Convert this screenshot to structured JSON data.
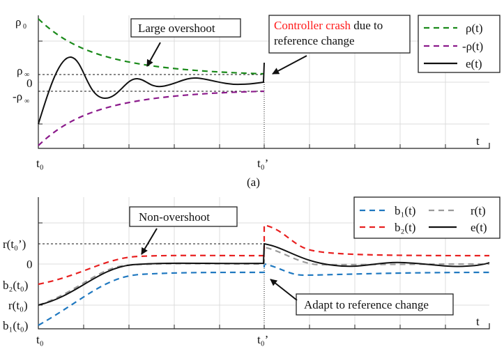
{
  "panel_a": {
    "caption": "(a)",
    "y_labels": {
      "rho0": "ρ",
      "rho0_sub": "0",
      "rho_inf": "ρ",
      "rho_inf_sub": "∞",
      "zero": "0",
      "neg_rho_inf": "-ρ",
      "neg_rho_inf_sub": "∞"
    },
    "x_labels": {
      "t0": "t₀",
      "t0p": "t₀’",
      "t": "t"
    },
    "annotations": {
      "overshoot": "Large overshoot",
      "crash_red": "Controller crash",
      "crash_rest1": " due to",
      "crash_rest2": "reference change"
    },
    "legend": [
      {
        "label": "ρ(t)",
        "color": "#1a8a1a",
        "style": "dashed"
      },
      {
        "label": "-ρ(t)",
        "color": "#8b1a8b",
        "style": "dashed"
      },
      {
        "label": "e(t)",
        "color": "#111111",
        "style": "solid"
      }
    ]
  },
  "panel_b": {
    "y_labels": {
      "r_t0p": "r(t₀’)",
      "zero": "0",
      "b2_t0": "b₂(t₀)",
      "r_t0": "r(t₀)",
      "b1_t0": "b₁(t₀)"
    },
    "x_labels": {
      "t0": "t₀",
      "t0p": "t₀’",
      "t": "t"
    },
    "annotations": {
      "non_overshoot": "Non-overshoot",
      "adapt": "Adapt to reference change"
    },
    "legend": [
      {
        "label": "b₁(t)",
        "color": "#1f78c0",
        "style": "dashed"
      },
      {
        "label": "r(t)",
        "color": "#9a9a9a",
        "style": "dashed"
      },
      {
        "label": "b₂(t)",
        "color": "#e82020",
        "style": "dashed"
      },
      {
        "label": "e(t)",
        "color": "#111111",
        "style": "solid"
      }
    ]
  },
  "colors": {
    "crash_highlight": "#ff1a1a"
  }
}
